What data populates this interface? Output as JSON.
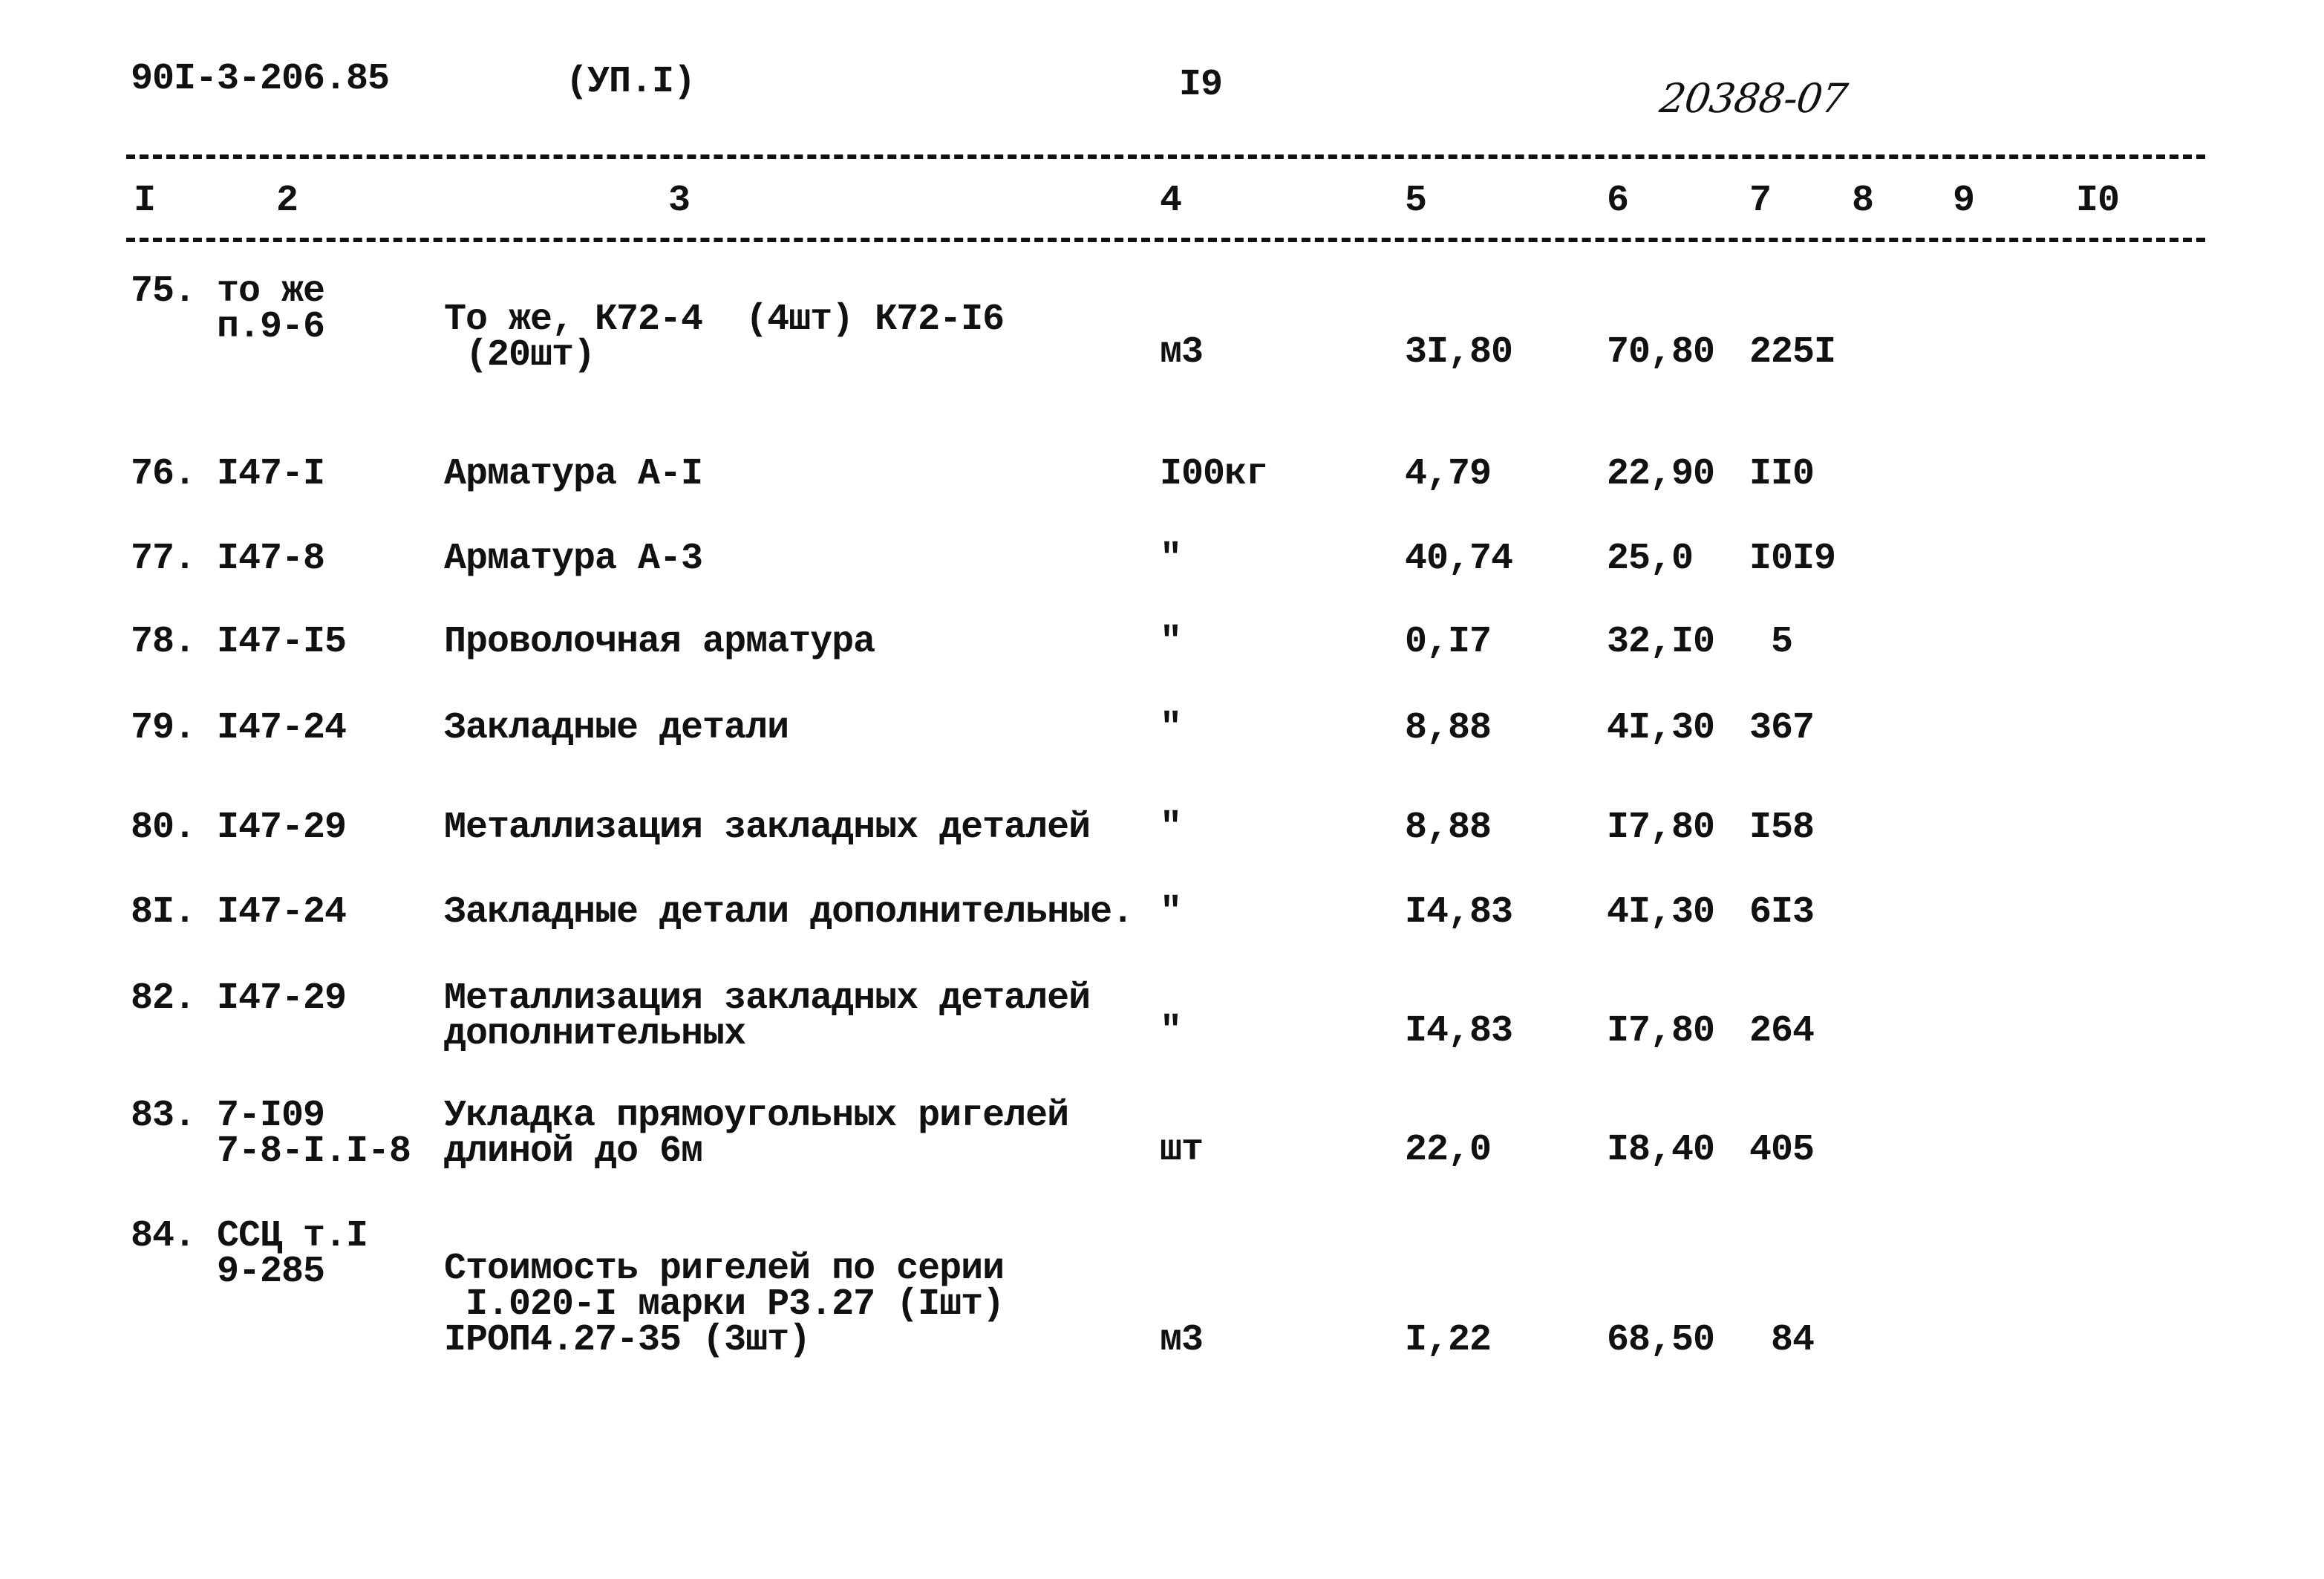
{
  "header": {
    "doc_code": "90I-3-206.85",
    "section": "(УП.I)",
    "page_number": "I9",
    "handwritten_number": "20388-07"
  },
  "columns": [
    "I",
    "2",
    "3",
    "4",
    "5",
    "6",
    "7",
    "8",
    "9",
    "I0"
  ],
  "rows": [
    {
      "num": "75.",
      "code": [
        "то же",
        "п.9-6"
      ],
      "desc": [
        "То же, К72-4  (4шт) К72-I6",
        " (20шт)"
      ],
      "unit": "м3",
      "qty": "3I,80",
      "price": "70,80",
      "total": "225I"
    },
    {
      "num": "76.",
      "code": [
        "I47-I"
      ],
      "desc": [
        "Арматура А-I"
      ],
      "unit": "I00кг",
      "qty": "4,79",
      "price": "22,90",
      "total": "II0"
    },
    {
      "num": "77.",
      "code": [
        "I47-8"
      ],
      "desc": [
        "Арматура А-3"
      ],
      "unit": "\"",
      "qty": "40,74",
      "price": "25,0",
      "total": "I0I9"
    },
    {
      "num": "78.",
      "code": [
        "I47-I5"
      ],
      "desc": [
        "Проволочная арматура"
      ],
      "unit": "\"",
      "qty": "0,I7",
      "price": "32,I0",
      "total": " 5"
    },
    {
      "num": "79.",
      "code": [
        "I47-24"
      ],
      "desc": [
        "Закладные детали"
      ],
      "unit": "\"",
      "qty": "8,88",
      "price": "4I,30",
      "total": "367"
    },
    {
      "num": "80.",
      "code": [
        "I47-29"
      ],
      "desc": [
        "Металлизация закладных деталей"
      ],
      "unit": "\"",
      "qty": "8,88",
      "price": "I7,80",
      "total": "I58"
    },
    {
      "num": "8I.",
      "code": [
        "I47-24"
      ],
      "desc": [
        "Закладные детали дополнительные."
      ],
      "unit": "\"",
      "qty": "I4,83",
      "price": "4I,30",
      "total": "6I3"
    },
    {
      "num": "82.",
      "code": [
        "I47-29"
      ],
      "desc": [
        "Металлизация закладных деталей",
        "дополнительных"
      ],
      "unit": "\"",
      "qty": "I4,83",
      "price": "I7,80",
      "total": "264"
    },
    {
      "num": "83.",
      "code": [
        "7-I09",
        "7-8-I.I-8"
      ],
      "desc": [
        "Укладка прямоугольных ригелей",
        "длиной до 6м"
      ],
      "unit": "шт",
      "qty": "22,0",
      "price": "I8,40",
      "total": "405"
    },
    {
      "num": "84.",
      "code": [
        "ССЦ т.I",
        "9-285"
      ],
      "desc": [
        "Стоимость ригелей по серии",
        " I.020-I марки Р3.27 (Iшт)",
        "IРОП4.27-35 (3шт)"
      ],
      "unit": "м3",
      "qty": "I,22",
      "price": "68,50",
      "total": " 84"
    }
  ]
}
